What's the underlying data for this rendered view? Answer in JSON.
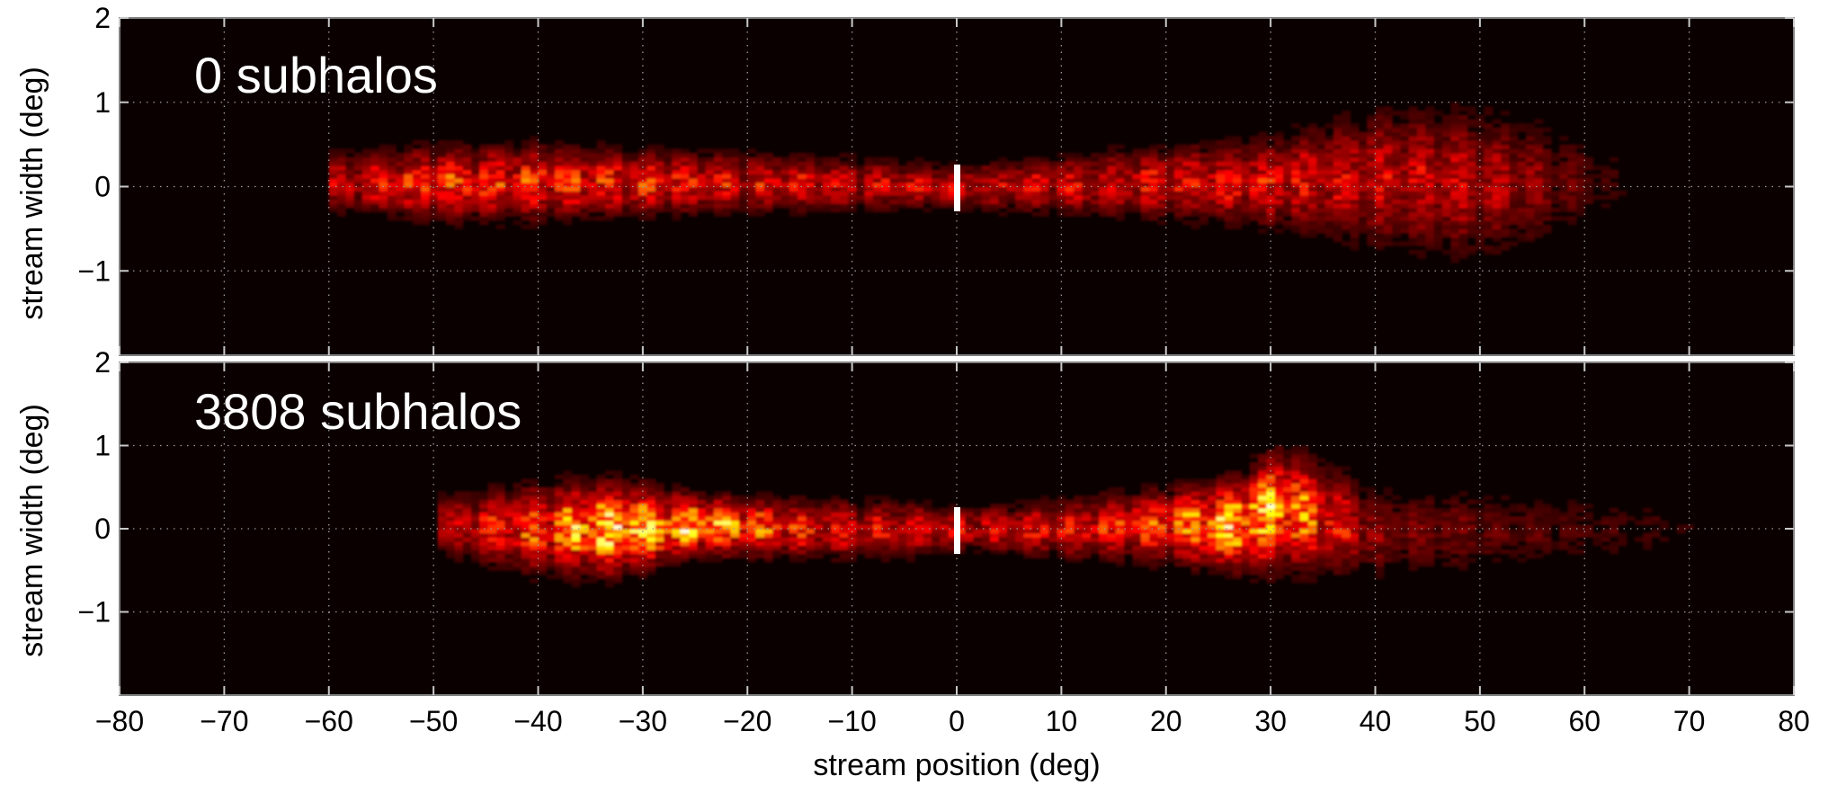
{
  "chart_data": [
    {
      "type": "heatmap",
      "title": "0 subhalos",
      "xlabel": "",
      "ylabel": "stream width (deg)",
      "xlim": [
        -80,
        80
      ],
      "ylim": [
        -2,
        2
      ],
      "x_ticks": [
        -80,
        -70,
        -60,
        -50,
        -40,
        -30,
        -20,
        -10,
        0,
        10,
        20,
        30,
        40,
        50,
        60,
        70,
        80
      ],
      "y_tick_labels": [
        "2",
        "1",
        "0",
        "−1"
      ],
      "grid": true,
      "colormap": "hot",
      "progenitor_x": 0,
      "density_profile": [
        {
          "x": -60,
          "y": 0.05,
          "width": 0.2,
          "density": 0.35
        },
        {
          "x": -50,
          "y": 0.05,
          "width": 0.25,
          "density": 0.55
        },
        {
          "x": -40,
          "y": 0.05,
          "width": 0.25,
          "density": 0.55
        },
        {
          "x": -30,
          "y": 0.05,
          "width": 0.22,
          "density": 0.5
        },
        {
          "x": -20,
          "y": 0.05,
          "width": 0.2,
          "density": 0.45
        },
        {
          "x": -10,
          "y": 0.03,
          "width": 0.18,
          "density": 0.4
        },
        {
          "x": 0,
          "y": 0.0,
          "width": 0.15,
          "density": 0.4
        },
        {
          "x": 10,
          "y": 0.02,
          "width": 0.2,
          "density": 0.4
        },
        {
          "x": 20,
          "y": 0.05,
          "width": 0.25,
          "density": 0.45
        },
        {
          "x": 30,
          "y": 0.05,
          "width": 0.3,
          "density": 0.45
        },
        {
          "x": 40,
          "y": 0.1,
          "width": 0.45,
          "density": 0.4
        },
        {
          "x": 50,
          "y": 0.05,
          "width": 0.5,
          "density": 0.35
        },
        {
          "x": 55,
          "y": 0.05,
          "width": 0.45,
          "density": 0.25
        },
        {
          "x": 65,
          "y": 0.05,
          "width": 0.2,
          "density": 0.05
        }
      ]
    },
    {
      "type": "heatmap",
      "title": "3808 subhalos",
      "xlabel": "stream position (deg)",
      "ylabel": "stream width (deg)",
      "xlim": [
        -80,
        80
      ],
      "ylim": [
        -2,
        2
      ],
      "x_ticks": [
        -80,
        -70,
        -60,
        -50,
        -40,
        -30,
        -20,
        -10,
        0,
        10,
        20,
        30,
        40,
        50,
        60,
        70,
        80
      ],
      "x_tick_labels": [
        "−80",
        "−70",
        "−60",
        "−50",
        "−40",
        "−30",
        "−20",
        "−10",
        "0",
        "10",
        "20",
        "30",
        "40",
        "50",
        "60",
        "70",
        "80"
      ],
      "y_tick_labels": [
        "2",
        "1",
        "0",
        "−1"
      ],
      "grid": true,
      "colormap": "hot",
      "progenitor_x": 0,
      "density_profile": [
        {
          "x": -50,
          "y": 0.05,
          "width": 0.2,
          "density": 0.35
        },
        {
          "x": -40,
          "y": 0.0,
          "width": 0.3,
          "density": 0.6
        },
        {
          "x": -33,
          "y": 0.0,
          "width": 0.3,
          "density": 1.0
        },
        {
          "x": -25,
          "y": 0.05,
          "width": 0.2,
          "density": 0.85
        },
        {
          "x": -15,
          "y": 0.0,
          "width": 0.2,
          "density": 0.5
        },
        {
          "x": -5,
          "y": 0.0,
          "width": 0.2,
          "density": 0.4
        },
        {
          "x": 0,
          "y": 0.0,
          "width": 0.15,
          "density": 0.4
        },
        {
          "x": 10,
          "y": 0.0,
          "width": 0.2,
          "density": 0.45
        },
        {
          "x": 20,
          "y": 0.05,
          "width": 0.25,
          "density": 0.6
        },
        {
          "x": 27,
          "y": 0.05,
          "width": 0.3,
          "density": 0.95
        },
        {
          "x": 31,
          "y": 0.25,
          "width": 0.4,
          "density": 0.85
        },
        {
          "x": 40,
          "y": -0.05,
          "width": 0.3,
          "density": 0.25
        },
        {
          "x": 55,
          "y": 0.0,
          "width": 0.3,
          "density": 0.15
        },
        {
          "x": 70,
          "y": 0.0,
          "width": 0.2,
          "density": 0.08
        }
      ]
    }
  ]
}
